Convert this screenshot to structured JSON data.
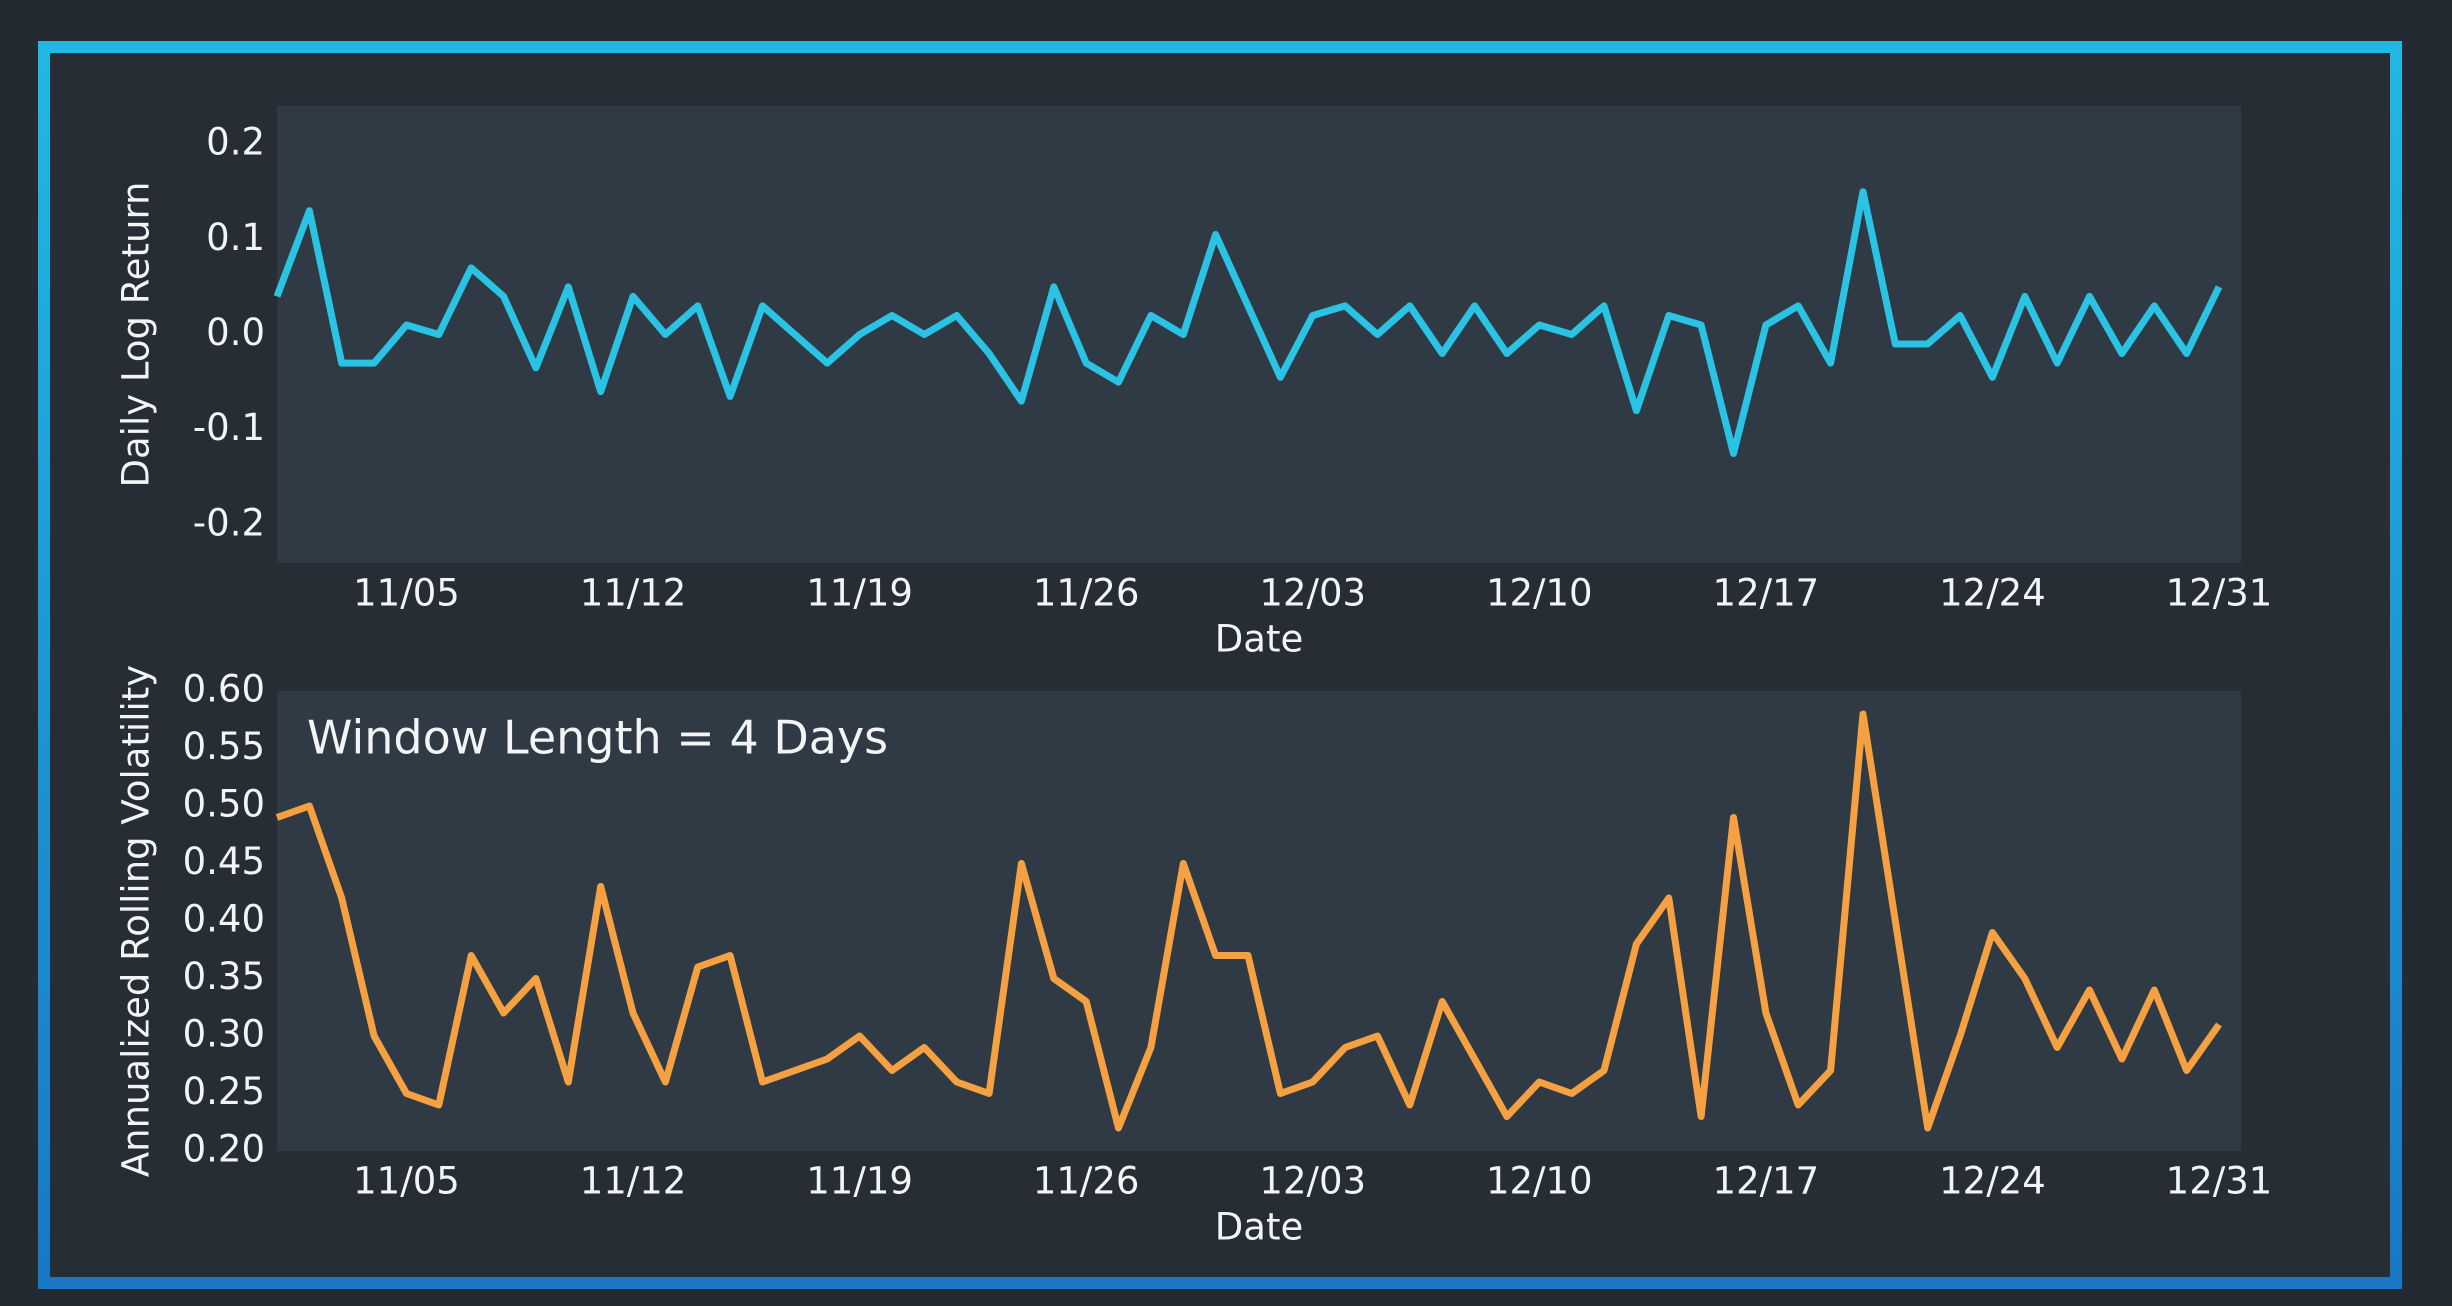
{
  "chart_data": [
    {
      "type": "line",
      "ylabel": "Daily Log Return",
      "xlabel": "Date",
      "x": [
        "11/01",
        "11/02",
        "11/03",
        "11/04",
        "11/05",
        "11/06",
        "11/07",
        "11/08",
        "11/09",
        "11/10",
        "11/11",
        "11/12",
        "11/13",
        "11/14",
        "11/15",
        "11/16",
        "11/17",
        "11/18",
        "11/19",
        "11/20",
        "11/21",
        "11/22",
        "11/23",
        "11/24",
        "11/25",
        "11/26",
        "11/27",
        "11/28",
        "11/29",
        "11/30",
        "12/01",
        "12/02",
        "12/03",
        "12/04",
        "12/05",
        "12/06",
        "12/07",
        "12/08",
        "12/09",
        "12/10",
        "12/11",
        "12/12",
        "12/13",
        "12/14",
        "12/15",
        "12/16",
        "12/17",
        "12/18",
        "12/19",
        "12/20",
        "12/21",
        "12/22",
        "12/23",
        "12/24",
        "12/25",
        "12/26",
        "12/27",
        "12/28",
        "12/29",
        "12/30",
        "12/31"
      ],
      "series": [
        {
          "color": "#2ac3e3",
          "values": [
            0.04,
            0.13,
            -0.03,
            -0.03,
            0.01,
            0.0,
            0.07,
            0.04,
            -0.035,
            0.05,
            -0.06,
            0.04,
            0.0,
            0.03,
            -0.065,
            0.03,
            0.0,
            -0.03,
            0.0,
            0.02,
            0.0,
            0.02,
            -0.02,
            -0.07,
            0.05,
            -0.03,
            -0.05,
            0.02,
            0.0,
            0.105,
            0.03,
            -0.045,
            0.02,
            0.03,
            0.0,
            0.03,
            -0.02,
            0.03,
            -0.02,
            0.01,
            0.0,
            0.03,
            -0.08,
            0.02,
            0.01,
            -0.125,
            0.01,
            0.03,
            -0.03,
            0.15,
            -0.01,
            -0.01,
            0.02,
            -0.045,
            0.04,
            -0.03,
            0.04,
            -0.02,
            0.03,
            -0.02,
            0.05
          ]
        }
      ],
      "xlim": [
        "11/01",
        "12/31"
      ],
      "xticks": [
        "11/05",
        "11/12",
        "11/19",
        "11/26",
        "12/03",
        "12/10",
        "12/17",
        "12/24",
        "12/31"
      ],
      "ylim": [
        -0.24,
        0.24
      ],
      "yticks": [
        0.2,
        0.1,
        {
          "value": 0,
          "label": "0.0"
        },
        -0.1,
        -0.2
      ]
    },
    {
      "type": "line",
      "ylabel": "Annualized Rolling Volatility",
      "xlabel": "Date",
      "annotation": "Window Length = 4 Days",
      "x": [
        "11/01",
        "11/02",
        "11/03",
        "11/04",
        "11/05",
        "11/06",
        "11/07",
        "11/08",
        "11/09",
        "11/10",
        "11/11",
        "11/12",
        "11/13",
        "11/14",
        "11/15",
        "11/16",
        "11/17",
        "11/18",
        "11/19",
        "11/20",
        "11/21",
        "11/22",
        "11/23",
        "11/24",
        "11/25",
        "11/26",
        "11/27",
        "11/28",
        "11/29",
        "11/30",
        "12/01",
        "12/02",
        "12/03",
        "12/04",
        "12/05",
        "12/06",
        "12/07",
        "12/08",
        "12/09",
        "12/10",
        "12/11",
        "12/12",
        "12/13",
        "12/14",
        "12/15",
        "12/16",
        "12/17",
        "12/18",
        "12/19",
        "12/20",
        "12/21",
        "12/22",
        "12/23",
        "12/24",
        "12/25",
        "12/26",
        "12/27",
        "12/28",
        "12/29",
        "12/30",
        "12/31"
      ],
      "series": [
        {
          "color": "#f5a142",
          "values": [
            0.49,
            0.5,
            0.42,
            0.3,
            0.25,
            0.24,
            0.37,
            0.32,
            0.35,
            0.26,
            0.43,
            0.32,
            0.26,
            0.36,
            0.37,
            0.26,
            0.27,
            0.28,
            0.3,
            0.27,
            0.29,
            0.26,
            0.25,
            0.45,
            0.35,
            0.33,
            0.22,
            0.29,
            0.45,
            0.37,
            0.37,
            0.25,
            0.26,
            0.29,
            0.3,
            0.24,
            0.33,
            0.28,
            0.23,
            0.26,
            0.25,
            0.27,
            0.38,
            0.42,
            0.23,
            0.49,
            0.32,
            0.24,
            0.27,
            0.58,
            0.4,
            0.22,
            0.3,
            0.39,
            0.35,
            0.29,
            0.34,
            0.28,
            0.34,
            0.27,
            0.31
          ]
        }
      ],
      "xlim": [
        "11/01",
        "12/31"
      ],
      "xticks": [
        "11/05",
        "11/12",
        "11/19",
        "11/26",
        "12/03",
        "12/10",
        "12/17",
        "12/24",
        "12/31"
      ],
      "ylim": [
        0.2,
        0.6
      ],
      "yticks": [
        {
          "value": 0.6,
          "label": "0.60"
        },
        0.55,
        {
          "value": 0.5,
          "label": "0.50"
        },
        0.45,
        {
          "value": 0.4,
          "label": "0.40"
        },
        0.35,
        {
          "value": 0.3,
          "label": "0.30"
        },
        0.25,
        {
          "value": 0.2,
          "label": "0.20"
        }
      ]
    }
  ]
}
